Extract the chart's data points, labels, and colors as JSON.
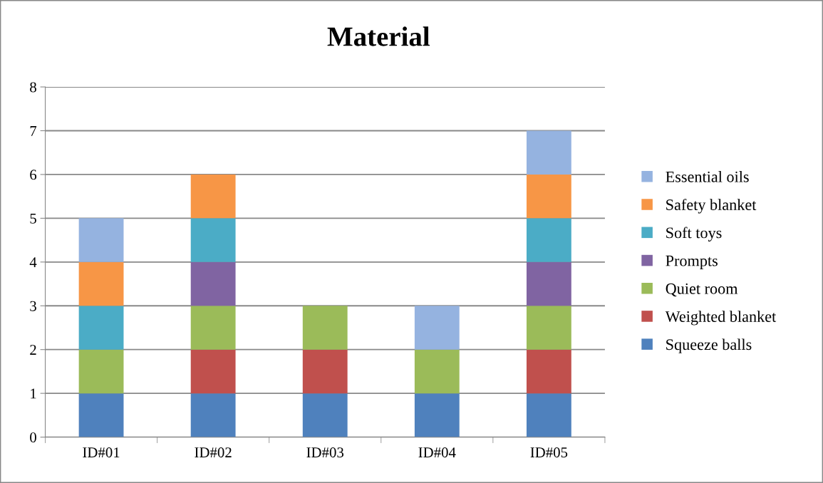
{
  "chart_data": {
    "type": "bar",
    "title": "Material",
    "stacked": true,
    "categories": [
      "ID#01",
      "ID#02",
      "ID#03",
      "ID#04",
      "ID#05"
    ],
    "series": [
      {
        "name": "Squeeze balls",
        "color": "#4f81bd",
        "values": [
          1,
          1,
          1,
          1,
          1
        ]
      },
      {
        "name": "Weighted blanket",
        "color": "#c0504d",
        "values": [
          0,
          1,
          1,
          0,
          1
        ]
      },
      {
        "name": "Quiet room",
        "color": "#9bbb59",
        "values": [
          1,
          1,
          1,
          1,
          1
        ]
      },
      {
        "name": "Prompts",
        "color": "#8064a2",
        "values": [
          0,
          1,
          0,
          0,
          1
        ]
      },
      {
        "name": "Soft toys",
        "color": "#4bacc6",
        "values": [
          1,
          1,
          0,
          0,
          1
        ]
      },
      {
        "name": "Safety blanket",
        "color": "#f79646",
        "values": [
          1,
          1,
          0,
          0,
          1
        ]
      },
      {
        "name": "Essential oils",
        "color": "#95b3e0",
        "values": [
          1,
          0,
          0,
          1,
          1
        ]
      }
    ],
    "ylim": [
      0,
      8
    ],
    "yticks": [
      0,
      1,
      2,
      3,
      4,
      5,
      6,
      7,
      8
    ],
    "grid": "y",
    "legend": "right"
  }
}
